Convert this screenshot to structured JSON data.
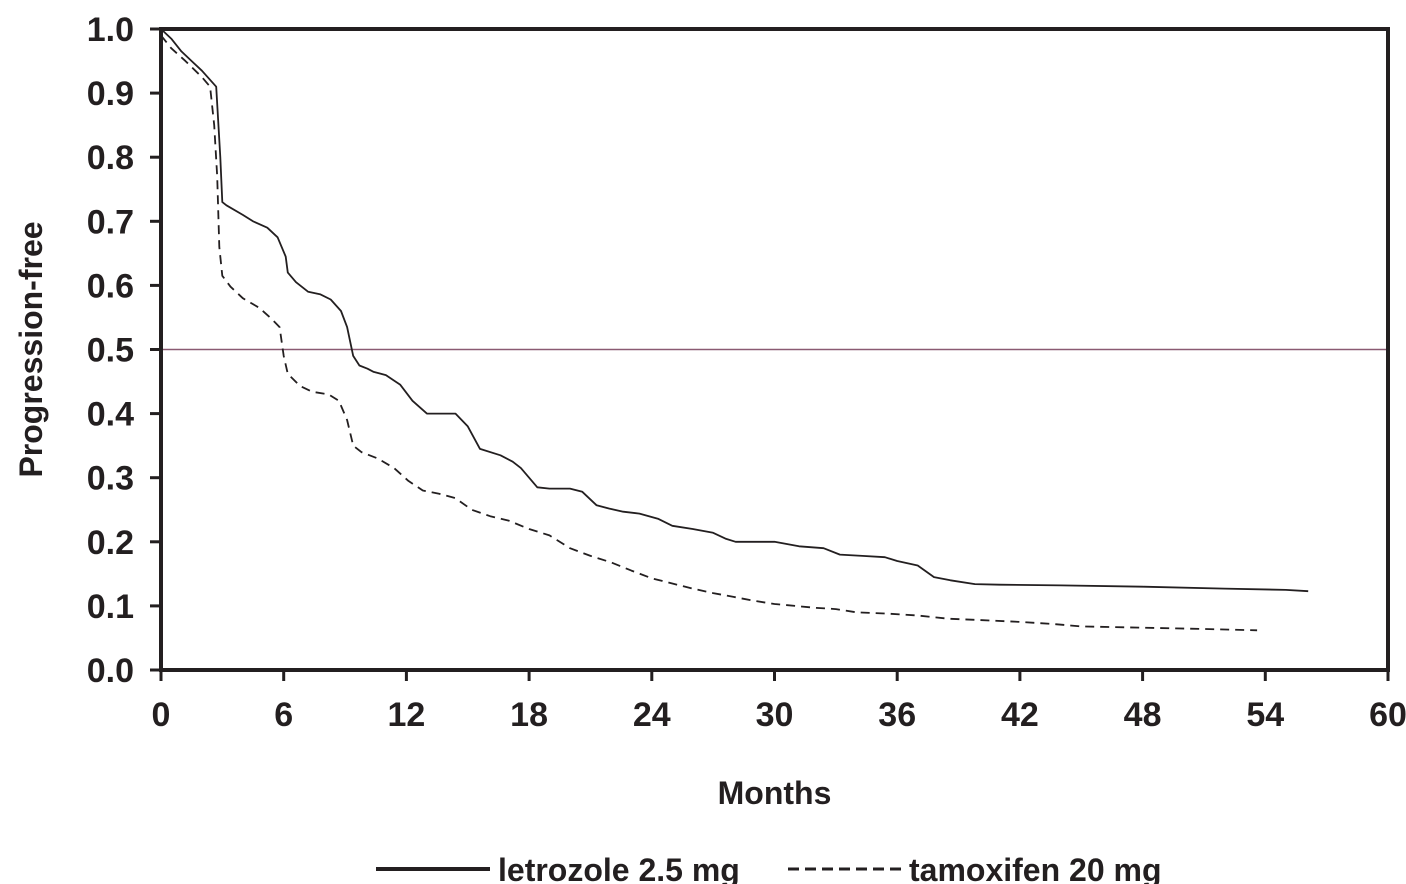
{
  "chart_data": {
    "type": "line",
    "title": "",
    "xlabel": "Months",
    "ylabel": "Progression-free",
    "xlim": [
      0,
      60
    ],
    "ylim": [
      0,
      1.0
    ],
    "x_ticks": [
      "0",
      "6",
      "12",
      "18",
      "24",
      "30",
      "36",
      "42",
      "48",
      "54",
      "60"
    ],
    "y_ticks": [
      "0.0",
      "0.1",
      "0.2",
      "0.3",
      "0.4",
      "0.5",
      "0.6",
      "0.7",
      "0.8",
      "0.9",
      "1.0"
    ],
    "grid": false,
    "reference_line": {
      "y": 0.5,
      "color": "#8a5a72"
    },
    "legend_position": "bottom-center",
    "series": [
      {
        "name": "letrozole 2.5 mg",
        "style": "solid",
        "color": "#231f20",
        "points": [
          [
            0,
            1.0
          ],
          [
            0.5,
            0.985
          ],
          [
            1,
            0.965
          ],
          [
            1.5,
            0.95
          ],
          [
            2,
            0.935
          ],
          [
            2.7,
            0.91
          ],
          [
            2.9,
            0.8
          ],
          [
            3.0,
            0.73
          ],
          [
            3.2,
            0.725
          ],
          [
            4,
            0.71
          ],
          [
            4.5,
            0.7
          ],
          [
            5.2,
            0.69
          ],
          [
            5.7,
            0.675
          ],
          [
            6.1,
            0.645
          ],
          [
            6.2,
            0.62
          ],
          [
            6.6,
            0.605
          ],
          [
            7.2,
            0.59
          ],
          [
            7.8,
            0.586
          ],
          [
            8.3,
            0.578
          ],
          [
            8.8,
            0.56
          ],
          [
            9.1,
            0.535
          ],
          [
            9.4,
            0.49
          ],
          [
            9.7,
            0.475
          ],
          [
            10.1,
            0.47
          ],
          [
            10.4,
            0.465
          ],
          [
            11,
            0.46
          ],
          [
            11.7,
            0.445
          ],
          [
            12.3,
            0.42
          ],
          [
            13,
            0.4
          ],
          [
            13.7,
            0.4
          ],
          [
            14.4,
            0.4
          ],
          [
            15,
            0.38
          ],
          [
            15.6,
            0.345
          ],
          [
            16.6,
            0.335
          ],
          [
            17.2,
            0.325
          ],
          [
            17.6,
            0.315
          ],
          [
            18.4,
            0.285
          ],
          [
            19,
            0.283
          ],
          [
            20,
            0.283
          ],
          [
            20.6,
            0.278
          ],
          [
            21.3,
            0.257
          ],
          [
            21.9,
            0.252
          ],
          [
            22.6,
            0.247
          ],
          [
            23.4,
            0.244
          ],
          [
            24.3,
            0.236
          ],
          [
            25,
            0.225
          ],
          [
            26,
            0.22
          ],
          [
            27,
            0.214
          ],
          [
            27.6,
            0.205
          ],
          [
            28.1,
            0.2
          ],
          [
            29,
            0.2
          ],
          [
            30,
            0.2
          ],
          [
            31.2,
            0.193
          ],
          [
            32.4,
            0.19
          ],
          [
            33.2,
            0.18
          ],
          [
            34.3,
            0.178
          ],
          [
            35.4,
            0.176
          ],
          [
            36,
            0.17
          ],
          [
            37,
            0.163
          ],
          [
            37.8,
            0.145
          ],
          [
            38.6,
            0.14
          ],
          [
            39.8,
            0.134
          ],
          [
            41,
            0.133
          ],
          [
            44,
            0.132
          ],
          [
            48,
            0.13
          ],
          [
            52,
            0.127
          ],
          [
            55,
            0.125
          ],
          [
            56.1,
            0.123
          ]
        ]
      },
      {
        "name": "tamoxifen 20 mg",
        "style": "dashed",
        "color": "#231f20",
        "points": [
          [
            0,
            0.99
          ],
          [
            0.5,
            0.97
          ],
          [
            1.2,
            0.95
          ],
          [
            2,
            0.925
          ],
          [
            2.4,
            0.91
          ],
          [
            2.6,
            0.85
          ],
          [
            2.75,
            0.77
          ],
          [
            2.85,
            0.66
          ],
          [
            3.0,
            0.615
          ],
          [
            3.4,
            0.598
          ],
          [
            4,
            0.58
          ],
          [
            4.8,
            0.565
          ],
          [
            5.4,
            0.548
          ],
          [
            5.8,
            0.535
          ],
          [
            6.0,
            0.49
          ],
          [
            6.2,
            0.462
          ],
          [
            6.8,
            0.443
          ],
          [
            7.4,
            0.434
          ],
          [
            8.2,
            0.43
          ],
          [
            8.7,
            0.42
          ],
          [
            9.1,
            0.39
          ],
          [
            9.4,
            0.35
          ],
          [
            9.8,
            0.34
          ],
          [
            10.6,
            0.33
          ],
          [
            11.4,
            0.315
          ],
          [
            12.1,
            0.295
          ],
          [
            12.8,
            0.28
          ],
          [
            13.6,
            0.275
          ],
          [
            14.4,
            0.268
          ],
          [
            15.2,
            0.25
          ],
          [
            16.1,
            0.24
          ],
          [
            17,
            0.233
          ],
          [
            18,
            0.22
          ],
          [
            19,
            0.21
          ],
          [
            20,
            0.19
          ],
          [
            21,
            0.178
          ],
          [
            22,
            0.168
          ],
          [
            23,
            0.155
          ],
          [
            24,
            0.143
          ],
          [
            25,
            0.135
          ],
          [
            26,
            0.127
          ],
          [
            27,
            0.12
          ],
          [
            28,
            0.114
          ],
          [
            29,
            0.108
          ],
          [
            30,
            0.103
          ],
          [
            31,
            0.1
          ],
          [
            32,
            0.097
          ],
          [
            33,
            0.095
          ],
          [
            34,
            0.09
          ],
          [
            35.5,
            0.088
          ],
          [
            37,
            0.085
          ],
          [
            38.5,
            0.08
          ],
          [
            40,
            0.078
          ],
          [
            42,
            0.075
          ],
          [
            43.5,
            0.072
          ],
          [
            45,
            0.068
          ],
          [
            48,
            0.066
          ],
          [
            51,
            0.064
          ],
          [
            53.6,
            0.062
          ]
        ]
      }
    ]
  }
}
